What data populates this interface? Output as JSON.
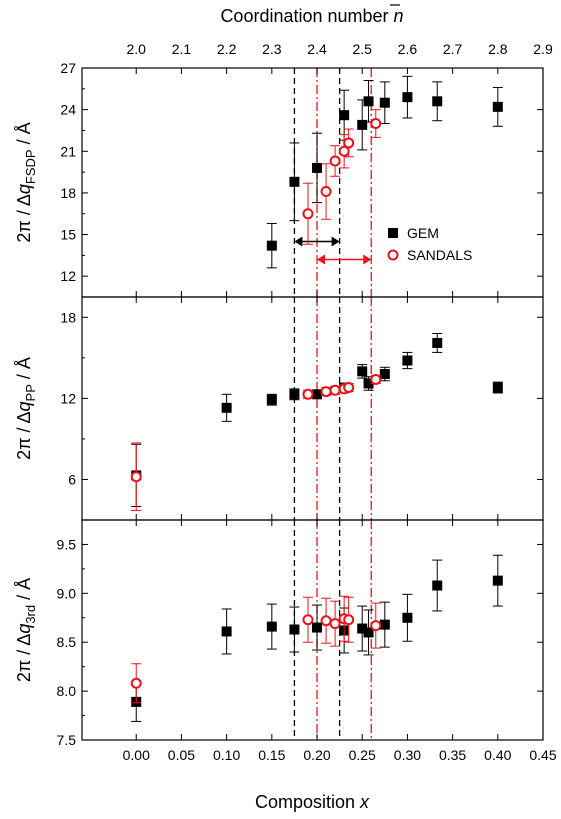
{
  "chart_data": {
    "type": "scatter",
    "xlabel_bottom_text": "Composition ",
    "xlabel_bottom_var": "x",
    "xlabel_top_text": "Coordination number ",
    "xlabel_top_var": "n",
    "xlim": [
      -0.06,
      0.45
    ],
    "x_ticks": [
      "0.00",
      "0.05",
      "0.10",
      "0.15",
      "0.20",
      "0.25",
      "0.30",
      "0.35",
      "0.40",
      "0.45"
    ],
    "x_tick_values": [
      0.0,
      0.05,
      0.1,
      0.15,
      0.2,
      0.25,
      0.3,
      0.35,
      0.4,
      0.45
    ],
    "top_ticks": [
      "2.0",
      "2.1",
      "2.2",
      "2.3",
      "2.4",
      "2.5",
      "2.6",
      "2.7",
      "2.8",
      "2.9"
    ],
    "top_tick_values": [
      2.0,
      2.1,
      2.2,
      2.3,
      2.4,
      2.5,
      2.6,
      2.7,
      2.8,
      2.9
    ],
    "legend": {
      "placement": "right-middle of top panel",
      "items": [
        {
          "name": "GEM",
          "marker": "filled-square",
          "color": "#000000"
        },
        {
          "name": "SANDALS",
          "marker": "open-circle",
          "color": "#e8141c"
        }
      ]
    },
    "vlines": [
      {
        "x": 0.175,
        "color": "#000000",
        "style": "dashed"
      },
      {
        "x": 0.225,
        "color": "#000000",
        "style": "dashed"
      },
      {
        "x": 0.2,
        "color": "#e8141c",
        "style": "dash-dot"
      },
      {
        "x": 0.26,
        "color": "#e8141c",
        "style": "dash-dot"
      }
    ],
    "panels": [
      {
        "id": "fsdp",
        "ylabel_prefix": "2π / Δ",
        "ylabel_var": "q",
        "ylabel_sub": "FSDP",
        "ylabel_suffix": " / Å",
        "ylim": [
          10.5,
          27
        ],
        "y_ticks": [
          "12",
          "15",
          "18",
          "21",
          "24",
          "27"
        ],
        "y_tick_values": [
          12,
          15,
          18,
          21,
          24,
          27
        ],
        "arrows": [
          {
            "from": 0.175,
            "to": 0.225,
            "y": 14.5,
            "color": "#000000"
          },
          {
            "from": 0.2,
            "to": 0.26,
            "y": 13.2,
            "color": "#e8141c"
          }
        ],
        "series": [
          {
            "name": "GEM",
            "points": [
              {
                "x": 0.15,
                "y": 14.2,
                "err": 1.6
              },
              {
                "x": 0.175,
                "y": 18.8,
                "err": 2.8
              },
              {
                "x": 0.2,
                "y": 19.8,
                "err": 2.5
              },
              {
                "x": 0.23,
                "y": 23.6,
                "err": 1.8
              },
              {
                "x": 0.25,
                "y": 22.9,
                "err": 1.8
              },
              {
                "x": 0.257,
                "y": 24.6,
                "err": 1.5
              },
              {
                "x": 0.275,
                "y": 24.5,
                "err": 1.5
              },
              {
                "x": 0.3,
                "y": 24.9,
                "err": 1.5
              },
              {
                "x": 0.333,
                "y": 24.6,
                "err": 1.4
              },
              {
                "x": 0.4,
                "y": 24.2,
                "err": 1.4
              }
            ]
          },
          {
            "name": "SANDALS",
            "points": [
              {
                "x": 0.19,
                "y": 16.5,
                "err": 2.2
              },
              {
                "x": 0.21,
                "y": 18.1,
                "err": 2.0
              },
              {
                "x": 0.22,
                "y": 20.3,
                "err": 1.1
              },
              {
                "x": 0.23,
                "y": 21.0,
                "err": 1.2
              },
              {
                "x": 0.235,
                "y": 21.6,
                "err": 1.0
              },
              {
                "x": 0.265,
                "y": 23.0,
                "err": 1.0
              }
            ]
          }
        ]
      },
      {
        "id": "pp",
        "ylabel_prefix": "2π / Δ",
        "ylabel_var": "q",
        "ylabel_sub": "PP",
        "ylabel_suffix": " / Å",
        "ylim": [
          3,
          19.5
        ],
        "y_ticks": [
          "6",
          "12",
          "18"
        ],
        "y_tick_values": [
          6,
          12,
          18
        ],
        "series": [
          {
            "name": "GEM",
            "points": [
              {
                "x": 0.0,
                "y": 6.3,
                "err": 2.3
              },
              {
                "x": 0.1,
                "y": 11.3,
                "err": 1.0
              },
              {
                "x": 0.15,
                "y": 11.9,
                "err": 0.4
              },
              {
                "x": 0.175,
                "y": 12.3,
                "err": 0.4
              },
              {
                "x": 0.2,
                "y": 12.3,
                "err": 0.3
              },
              {
                "x": 0.23,
                "y": 12.8,
                "err": 0.3
              },
              {
                "x": 0.25,
                "y": 14.0,
                "err": 0.5
              },
              {
                "x": 0.257,
                "y": 13.1,
                "err": 0.5
              },
              {
                "x": 0.275,
                "y": 13.8,
                "err": 0.5
              },
              {
                "x": 0.3,
                "y": 14.8,
                "err": 0.6
              },
              {
                "x": 0.333,
                "y": 16.1,
                "err": 0.7
              },
              {
                "x": 0.4,
                "y": 12.8,
                "err": 0.4
              }
            ]
          },
          {
            "name": "SANDALS",
            "points": [
              {
                "x": 0.0,
                "y": 6.2,
                "err": 2.5
              },
              {
                "x": 0.19,
                "y": 12.3,
                "err": 0.3
              },
              {
                "x": 0.21,
                "y": 12.5,
                "err": 0.3
              },
              {
                "x": 0.22,
                "y": 12.6,
                "err": 0.3
              },
              {
                "x": 0.23,
                "y": 12.7,
                "err": 0.3
              },
              {
                "x": 0.235,
                "y": 12.8,
                "err": 0.3
              },
              {
                "x": 0.265,
                "y": 13.4,
                "err": 0.3
              }
            ]
          }
        ]
      },
      {
        "id": "3rd",
        "ylabel_prefix": "2π / Δ",
        "ylabel_var": "q",
        "ylabel_sub": "3rd",
        "ylabel_suffix": " / Å",
        "ylim": [
          7.5,
          9.75
        ],
        "y_ticks": [
          "7.5",
          "8.0",
          "8.5",
          "9.0",
          "9.5"
        ],
        "y_tick_values": [
          7.5,
          8.0,
          8.5,
          9.0,
          9.5
        ],
        "series": [
          {
            "name": "GEM",
            "points": [
              {
                "x": 0.0,
                "y": 7.89,
                "err": 0.2
              },
              {
                "x": 0.1,
                "y": 8.61,
                "err": 0.23
              },
              {
                "x": 0.15,
                "y": 8.66,
                "err": 0.23
              },
              {
                "x": 0.175,
                "y": 8.63,
                "err": 0.23
              },
              {
                "x": 0.2,
                "y": 8.65,
                "err": 0.23
              },
              {
                "x": 0.23,
                "y": 8.62,
                "err": 0.23
              },
              {
                "x": 0.25,
                "y": 8.64,
                "err": 0.23
              },
              {
                "x": 0.257,
                "y": 8.6,
                "err": 0.23
              },
              {
                "x": 0.275,
                "y": 8.68,
                "err": 0.23
              },
              {
                "x": 0.3,
                "y": 8.75,
                "err": 0.24
              },
              {
                "x": 0.333,
                "y": 9.08,
                "err": 0.26
              },
              {
                "x": 0.4,
                "y": 9.13,
                "err": 0.26
              }
            ]
          },
          {
            "name": "SANDALS",
            "points": [
              {
                "x": 0.0,
                "y": 8.08,
                "err": 0.2
              },
              {
                "x": 0.19,
                "y": 8.73,
                "err": 0.23
              },
              {
                "x": 0.21,
                "y": 8.72,
                "err": 0.23
              },
              {
                "x": 0.22,
                "y": 8.69,
                "err": 0.23
              },
              {
                "x": 0.23,
                "y": 8.74,
                "err": 0.23
              },
              {
                "x": 0.235,
                "y": 8.73,
                "err": 0.23
              },
              {
                "x": 0.265,
                "y": 8.67,
                "err": 0.23
              }
            ]
          }
        ]
      }
    ]
  }
}
